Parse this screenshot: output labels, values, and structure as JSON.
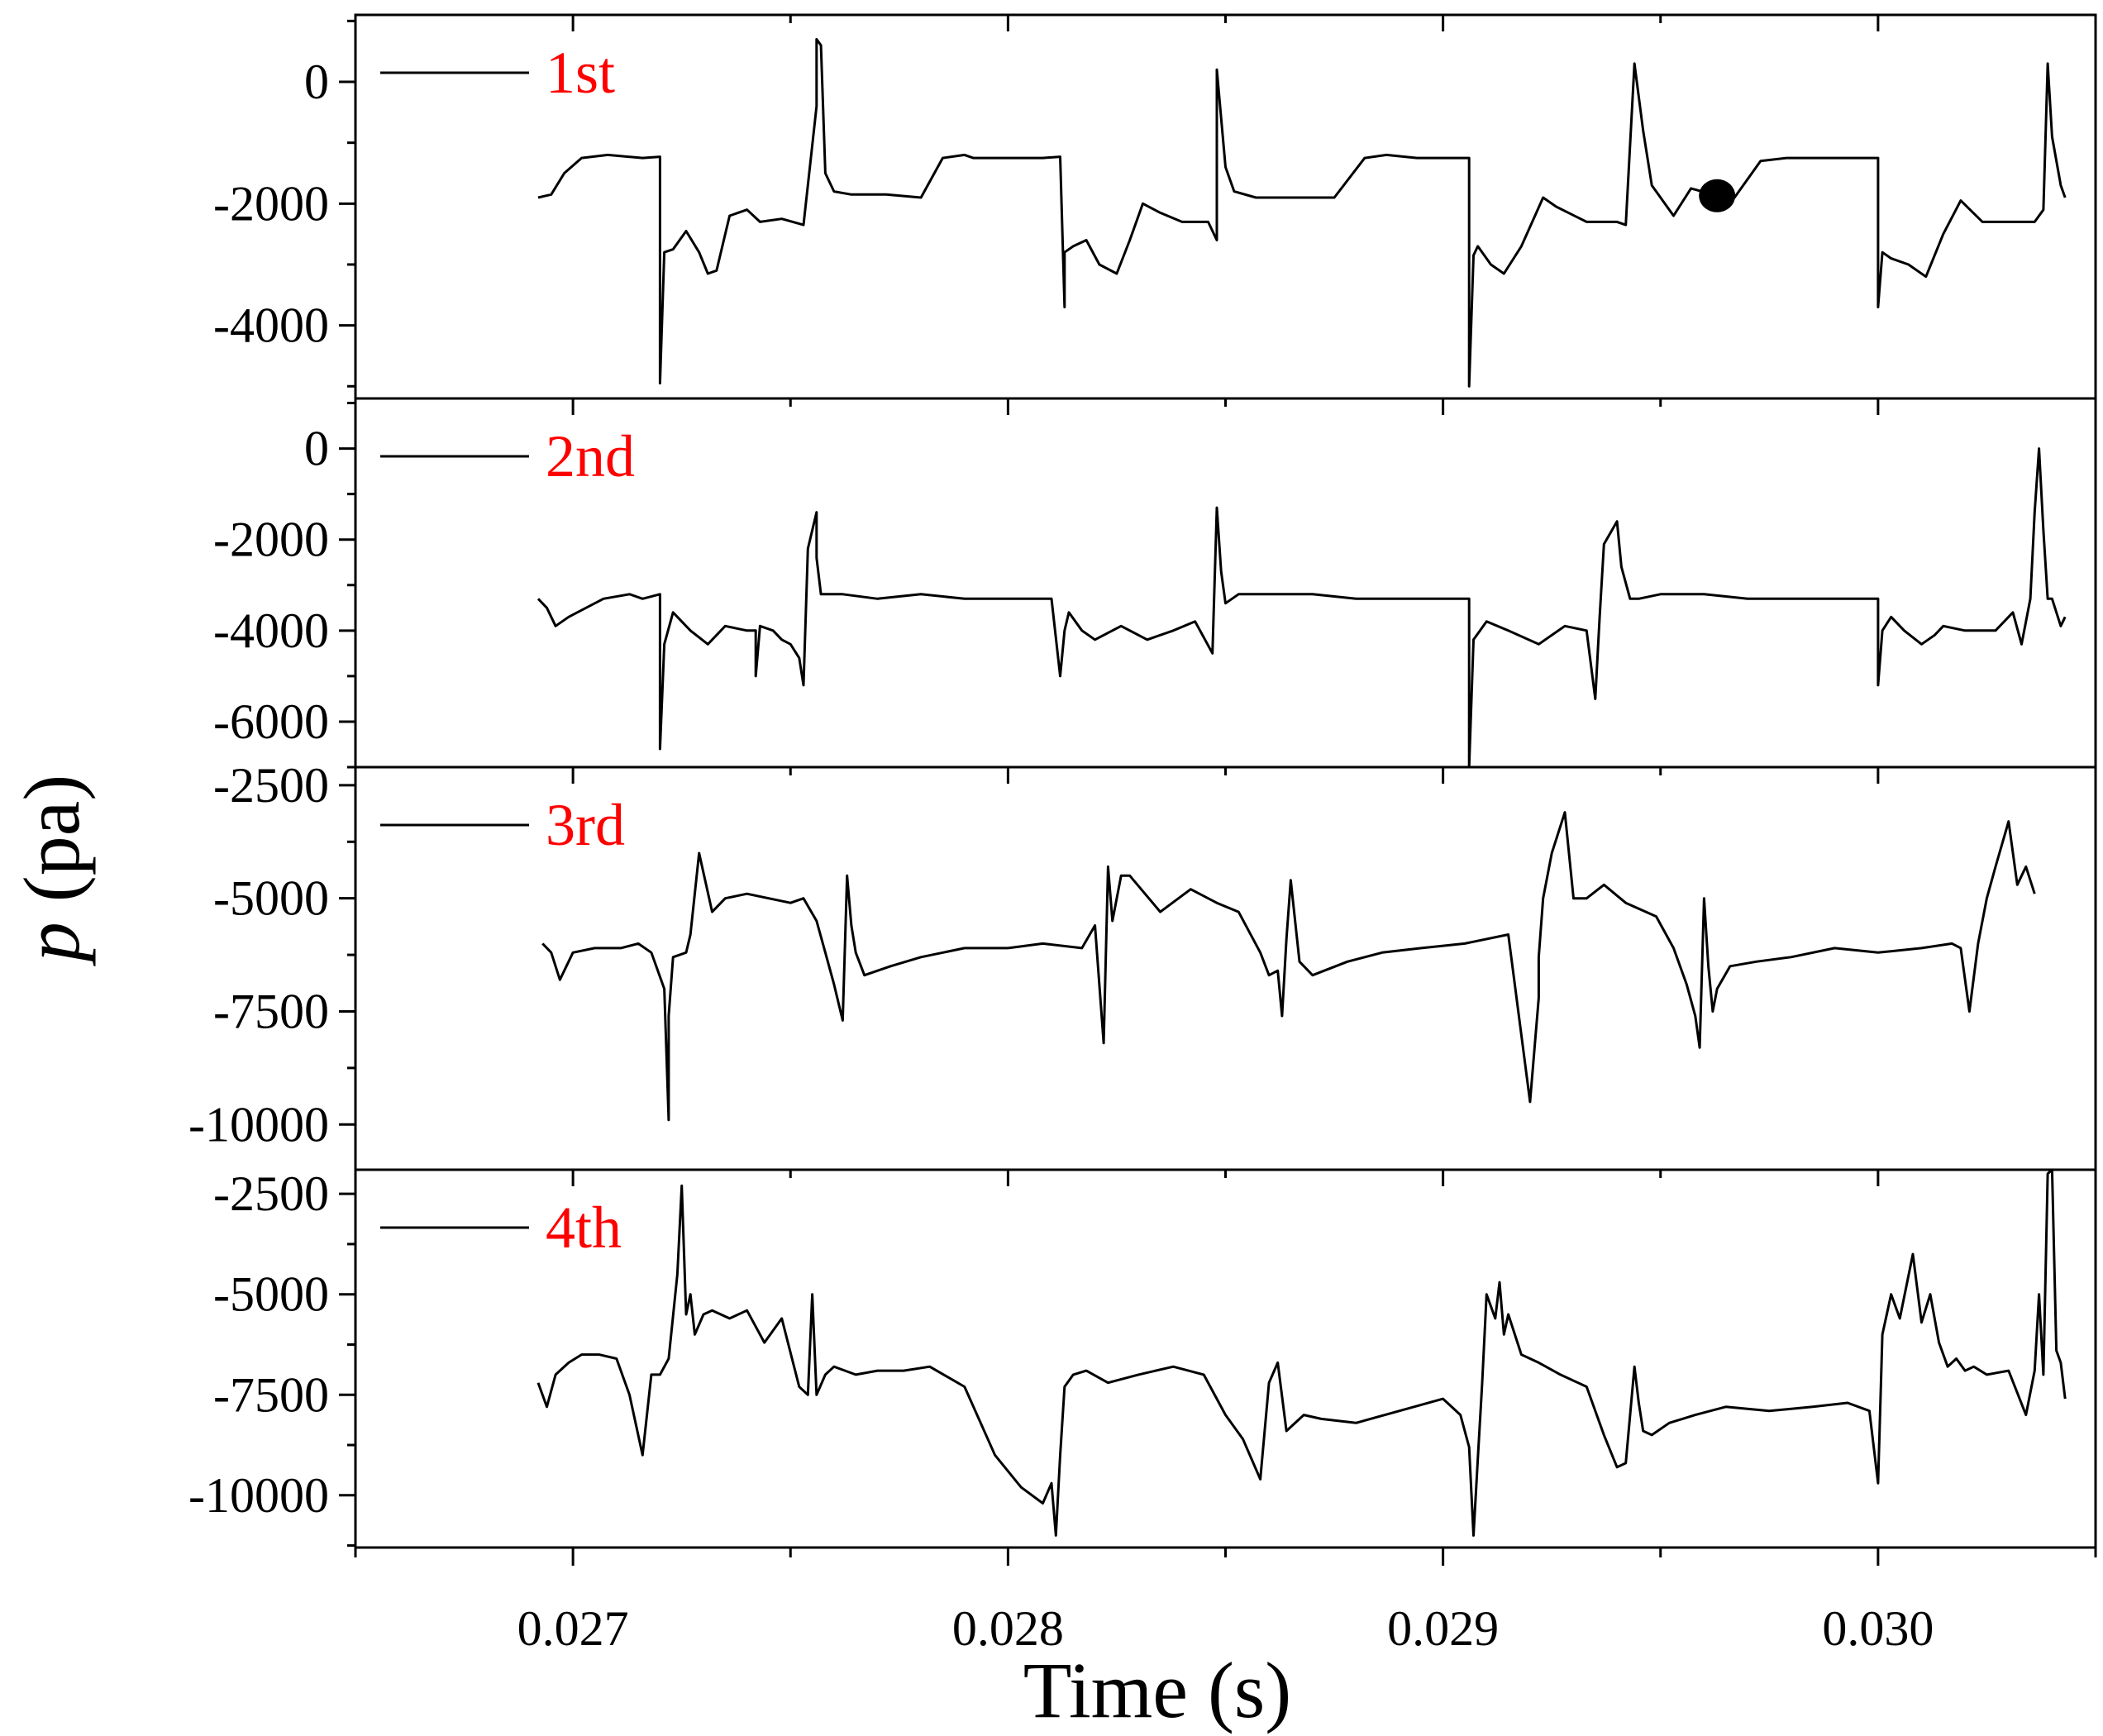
{
  "chart_data": {
    "type": "line",
    "xlabel": "Time (s)",
    "ylabel_italic": "p",
    "ylabel_unit": " (pa)",
    "xlim": [
      0.0265,
      0.0305
    ],
    "xticks": [
      0.027,
      0.028,
      0.029,
      0.03
    ],
    "xtick_labels": [
      "0.027",
      "0.028",
      "0.029",
      "0.030"
    ],
    "legend_color": "#ff0000",
    "line_color": "#000000",
    "marker": {
      "panel": 0,
      "x": 0.02963,
      "y": -1870
    },
    "panels": [
      {
        "legend": "1st",
        "ylim": [
          -5200,
          1100
        ],
        "yticks": [
          0,
          -2000,
          -4000
        ],
        "ytick_labels": [
          "0",
          "-2000",
          "-4000"
        ],
        "x": [
          0.02692,
          0.02695,
          0.02698,
          0.02702,
          0.02708,
          0.02716,
          0.0272,
          0.0272,
          0.02721,
          0.02721,
          0.02723,
          0.02726,
          0.02729,
          0.02731,
          0.02733,
          0.02736,
          0.0274,
          0.02743,
          0.02748,
          0.02753,
          0.02756,
          0.02756,
          0.02757,
          0.02758,
          0.0276,
          0.02764,
          0.02772,
          0.0278,
          0.02785,
          0.0279,
          0.02792,
          0.02796,
          0.028,
          0.02808,
          0.02812,
          0.02813,
          0.02813,
          0.02815,
          0.02818,
          0.02821,
          0.02825,
          0.02828,
          0.02831,
          0.02835,
          0.0284,
          0.02846,
          0.02848,
          0.02848,
          0.0285,
          0.02852,
          0.02857,
          0.02865,
          0.02875,
          0.02882,
          0.02887,
          0.02894,
          0.029,
          0.02906,
          0.02906,
          0.02907,
          0.02908,
          0.02911,
          0.02914,
          0.02918,
          0.02923,
          0.02926,
          0.02933,
          0.0294,
          0.02942,
          0.02944,
          0.02946,
          0.02948,
          0.02953,
          0.02957,
          0.02963,
          0.02967,
          0.02973,
          0.02979,
          0.02987,
          0.02996,
          0.03,
          0.03,
          0.03001,
          0.03003,
          0.03007,
          0.03011,
          0.03015,
          0.03019,
          0.03024,
          0.03031,
          0.03036,
          0.03038,
          0.03039,
          0.0304,
          0.03042,
          0.03043
        ],
        "y": [
          -1900,
          -1850,
          -1500,
          -1250,
          -1200,
          -1250,
          -1230,
          -4950,
          -2800,
          -2800,
          -2750,
          -2450,
          -2800,
          -3150,
          -3100,
          -2200,
          -2100,
          -2300,
          -2250,
          -2350,
          -400,
          700,
          600,
          -1500,
          -1800,
          -1850,
          -1850,
          -1900,
          -1250,
          -1200,
          -1250,
          -1250,
          -1250,
          -1250,
          -1230,
          -3700,
          -2800,
          -2700,
          -2600,
          -3000,
          -3150,
          -2600,
          -2000,
          -2150,
          -2300,
          -2300,
          -2600,
          200,
          -1400,
          -1800,
          -1900,
          -1900,
          -1900,
          -1250,
          -1200,
          -1250,
          -1250,
          -1250,
          -5000,
          -2850,
          -2700,
          -3000,
          -3150,
          -2700,
          -1900,
          -2050,
          -2300,
          -2300,
          -2350,
          300,
          -800,
          -1700,
          -2200,
          -1750,
          -1870,
          -1900,
          -1300,
          -1250,
          -1250,
          -1250,
          -1250,
          -3700,
          -2800,
          -2900,
          -3000,
          -3200,
          -2500,
          -1950,
          -2300,
          -2300,
          -2300,
          -2100,
          300,
          -900,
          -1700,
          -1900
        ]
      },
      {
        "legend": "2nd",
        "ylim": [
          -7000,
          1100
        ],
        "yticks": [
          0,
          -2000,
          -4000,
          -6000
        ],
        "ytick_labels": [
          "0",
          "-2000",
          "-4000",
          "-6000"
        ],
        "x": [
          0.02692,
          0.02694,
          0.02696,
          0.02699,
          0.02703,
          0.02707,
          0.02713,
          0.02716,
          0.0272,
          0.0272,
          0.02721,
          0.02721,
          0.02723,
          0.02727,
          0.02731,
          0.02735,
          0.0274,
          0.02742,
          0.02742,
          0.02743,
          0.02746,
          0.02748,
          0.0275,
          0.02752,
          0.02753,
          0.02754,
          0.02756,
          0.02756,
          0.02757,
          0.02759,
          0.02762,
          0.0277,
          0.0278,
          0.0279,
          0.028,
          0.02806,
          0.0281,
          0.02812,
          0.02813,
          0.02814,
          0.02817,
          0.0282,
          0.02826,
          0.02832,
          0.02838,
          0.02843,
          0.02847,
          0.02848,
          0.02849,
          0.0285,
          0.02853,
          0.0286,
          0.0287,
          0.0288,
          0.0289,
          0.029,
          0.02906,
          0.02906,
          0.02907,
          0.0291,
          0.02915,
          0.02922,
          0.02928,
          0.02933,
          0.02935,
          0.02936,
          0.02937,
          0.0294,
          0.02941,
          0.02943,
          0.02945,
          0.0295,
          0.0296,
          0.0297,
          0.0298,
          0.0299,
          0.03,
          0.03,
          0.03001,
          0.03003,
          0.03006,
          0.0301,
          0.03013,
          0.03015,
          0.0302,
          0.03027,
          0.03031,
          0.03033,
          0.03035,
          0.03036,
          0.03037,
          0.03038,
          0.03039,
          0.0304,
          0.03042,
          0.03043
        ],
        "y": [
          -3300,
          -3500,
          -3900,
          -3700,
          -3500,
          -3300,
          -3200,
          -3300,
          -3200,
          -6600,
          -4300,
          -4300,
          -3600,
          -4000,
          -4300,
          -3900,
          -4000,
          -4000,
          -5000,
          -3900,
          -4000,
          -4200,
          -4300,
          -4600,
          -5200,
          -2200,
          -1400,
          -2400,
          -3200,
          -3200,
          -3200,
          -3300,
          -3200,
          -3300,
          -3300,
          -3300,
          -3300,
          -5000,
          -4000,
          -3600,
          -4000,
          -4200,
          -3900,
          -4200,
          -4000,
          -3800,
          -4500,
          -1300,
          -2700,
          -3400,
          -3200,
          -3200,
          -3200,
          -3300,
          -3300,
          -3300,
          -3300,
          -7000,
          -4200,
          -3800,
          -4000,
          -4300,
          -3900,
          -4000,
          -5500,
          -3700,
          -2100,
          -1600,
          -2600,
          -3300,
          -3300,
          -3200,
          -3200,
          -3300,
          -3300,
          -3300,
          -3300,
          -5200,
          -4000,
          -3700,
          -4000,
          -4300,
          -4100,
          -3900,
          -4000,
          -4000,
          -3600,
          -4300,
          -3300,
          -1400,
          0,
          -1800,
          -3300,
          -3300,
          -3900,
          -3700
        ]
      },
      {
        "legend": "3rd",
        "ylim": [
          -11000,
          -2100
        ],
        "yticks": [
          -2500,
          -5000,
          -7500,
          -10000
        ],
        "ytick_labels": [
          "-2500",
          "-5000",
          "-7500",
          "-10000"
        ],
        "x": [
          0.02693,
          0.02695,
          0.02697,
          0.027,
          0.02705,
          0.02711,
          0.02715,
          0.02718,
          0.02721,
          0.02722,
          0.02722,
          0.02723,
          0.02726,
          0.02727,
          0.02729,
          0.02732,
          0.02735,
          0.0274,
          0.02745,
          0.0275,
          0.02753,
          0.02756,
          0.02758,
          0.0276,
          0.02762,
          0.02763,
          0.02764,
          0.02765,
          0.02767,
          0.02773,
          0.0278,
          0.0279,
          0.028,
          0.02808,
          0.02817,
          0.0282,
          0.02822,
          0.02823,
          0.02824,
          0.02826,
          0.02828,
          0.02835,
          0.02842,
          0.02848,
          0.02853,
          0.02858,
          0.0286,
          0.02862,
          0.02863,
          0.02864,
          0.02865,
          0.02867,
          0.0287,
          0.02878,
          0.02886,
          0.02895,
          0.02905,
          0.02915,
          0.0292,
          0.02922,
          0.02922,
          0.02923,
          0.02925,
          0.02928,
          0.0293,
          0.02933,
          0.02937,
          0.02942,
          0.02949,
          0.02953,
          0.02956,
          0.02958,
          0.02959,
          0.0296,
          0.02961,
          0.02962,
          0.02963,
          0.02966,
          0.02972,
          0.0298,
          0.0299,
          0.03,
          0.0301,
          0.03017,
          0.03019,
          0.03021,
          0.03023,
          0.03025,
          0.03027,
          0.0303,
          0.03032,
          0.03034,
          0.03036
        ],
        "y": [
          -6000,
          -6200,
          -6800,
          -6200,
          -6100,
          -6100,
          -6000,
          -6200,
          -7000,
          -9900,
          -7600,
          -6300,
          -6200,
          -5800,
          -4000,
          -5300,
          -5000,
          -4900,
          -5000,
          -5100,
          -5000,
          -5500,
          -6200,
          -6900,
          -7700,
          -4500,
          -5600,
          -6200,
          -6700,
          -6500,
          -6300,
          -6100,
          -6100,
          -6000,
          -6100,
          -5600,
          -8200,
          -4300,
          -5500,
          -4500,
          -4500,
          -5300,
          -4800,
          -5100,
          -5300,
          -6200,
          -6700,
          -6600,
          -7600,
          -5900,
          -4600,
          -6400,
          -6700,
          -6400,
          -6200,
          -6100,
          -6000,
          -5800,
          -9500,
          -7200,
          -6300,
          -5000,
          -4000,
          -3100,
          -5000,
          -5000,
          -4700,
          -5100,
          -5400,
          -6100,
          -6900,
          -7600,
          -8300,
          -5000,
          -6500,
          -7500,
          -7000,
          -6500,
          -6400,
          -6300,
          -6100,
          -6200,
          -6100,
          -6000,
          -6100,
          -7500,
          -6000,
          -5000,
          -4300,
          -3300,
          -4700,
          -4300,
          -4900
        ]
      },
      {
        "legend": "4th",
        "ylim": [
          -11300,
          -1900
        ],
        "yticks": [
          -2500,
          -5000,
          -7500,
          -10000
        ],
        "ytick_labels": [
          "-2500",
          "-5000",
          "-7500",
          "-10000"
        ],
        "x": [
          0.02692,
          0.02694,
          0.02696,
          0.02699,
          0.02702,
          0.02706,
          0.0271,
          0.02713,
          0.02716,
          0.02718,
          0.0272,
          0.02722,
          0.02724,
          0.02725,
          0.02726,
          0.02727,
          0.02728,
          0.0273,
          0.02732,
          0.02736,
          0.0274,
          0.02744,
          0.02748,
          0.02752,
          0.02754,
          0.02755,
          0.02756,
          0.02758,
          0.0276,
          0.02765,
          0.0277,
          0.02776,
          0.02782,
          0.0279,
          0.02797,
          0.02803,
          0.02808,
          0.0281,
          0.02811,
          0.02812,
          0.02813,
          0.02815,
          0.02818,
          0.02823,
          0.0283,
          0.02838,
          0.02845,
          0.0285,
          0.02854,
          0.02858,
          0.0286,
          0.02862,
          0.02864,
          0.02868,
          0.02872,
          0.0288,
          0.0289,
          0.029,
          0.02904,
          0.02906,
          0.02907,
          0.02908,
          0.02909,
          0.0291,
          0.02912,
          0.02913,
          0.02914,
          0.02915,
          0.02918,
          0.02922,
          0.02927,
          0.02933,
          0.02937,
          0.0294,
          0.02942,
          0.02944,
          0.02945,
          0.02946,
          0.02948,
          0.02952,
          0.02958,
          0.02965,
          0.02975,
          0.02985,
          0.02993,
          0.02998,
          0.03,
          0.03001,
          0.03003,
          0.03005,
          0.03008,
          0.0301,
          0.03012,
          0.03014,
          0.03016,
          0.03018,
          0.0302,
          0.03022,
          0.03025,
          0.0303,
          0.03034,
          0.03036,
          0.03037,
          0.03038,
          0.03039,
          0.0304,
          0.03041,
          0.03042,
          0.03043
        ],
        "y": [
          -7200,
          -7800,
          -7000,
          -6700,
          -6500,
          -6500,
          -6600,
          -7500,
          -9000,
          -7000,
          -7000,
          -6600,
          -4500,
          -2300,
          -5500,
          -5000,
          -6000,
          -5500,
          -5400,
          -5600,
          -5400,
          -6200,
          -5600,
          -7300,
          -7500,
          -5000,
          -7500,
          -7000,
          -6800,
          -7000,
          -6900,
          -6900,
          -6800,
          -7300,
          -9000,
          -9800,
          -10200,
          -9700,
          -11000,
          -9000,
          -7300,
          -7000,
          -6900,
          -7200,
          -7000,
          -6800,
          -7000,
          -8000,
          -8600,
          -9600,
          -7200,
          -6700,
          -8400,
          -8000,
          -8100,
          -8200,
          -7900,
          -7600,
          -8000,
          -8800,
          -11000,
          -9100,
          -7200,
          -5000,
          -5600,
          -4700,
          -6000,
          -5500,
          -6500,
          -6700,
          -7000,
          -7300,
          -8500,
          -9300,
          -9200,
          -6800,
          -7700,
          -8400,
          -8500,
          -8200,
          -8000,
          -7800,
          -7900,
          -7800,
          -7700,
          -7900,
          -9700,
          -6000,
          -5000,
          -5600,
          -4000,
          -5700,
          -5000,
          -6200,
          -6800,
          -6600,
          -6900,
          -6800,
          -7000,
          -6900,
          -8000,
          -6900,
          -5000,
          -7000,
          -2000,
          -1900,
          -6400,
          -6700,
          -7600
        ]
      }
    ]
  }
}
